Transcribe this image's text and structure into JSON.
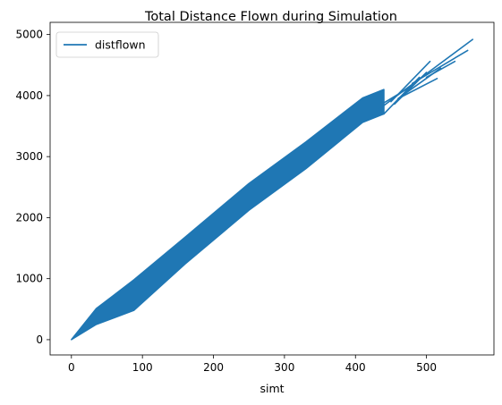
{
  "chart_data": {
    "type": "line",
    "title": "Total Distance Flown during Simulation",
    "xlabel": "simt",
    "ylabel": "",
    "xlim": [
      -30,
      595
    ],
    "ylim": [
      -250,
      5200
    ],
    "xticks": [
      0,
      100,
      200,
      300,
      400,
      500
    ],
    "yticks": [
      0,
      1000,
      2000,
      3000,
      4000,
      5000
    ],
    "grid": false,
    "legend_position": "top-left",
    "series": [
      {
        "name": "distflown",
        "color": "#1f77b4",
        "band": {
          "x": [
            0,
            35,
            88,
            160,
            250,
            330,
            410,
            440
          ],
          "upper": [
            0,
            510,
            980,
            1680,
            2560,
            3240,
            3960,
            4100
          ],
          "lower": [
            0,
            250,
            480,
            1240,
            2120,
            2800,
            3560,
            3700
          ]
        },
        "spikes": [
          {
            "from": [
              430,
              3750
            ],
            "to": [
              470,
              4100
            ]
          },
          {
            "from": [
              440,
              3700
            ],
            "to": [
              490,
              4300
            ]
          },
          {
            "from": [
              450,
              3900
            ],
            "to": [
              505,
              4560
            ]
          },
          {
            "from": [
              455,
              3860
            ],
            "to": [
              500,
              4380
            ]
          },
          {
            "from": [
              460,
              3950
            ],
            "to": [
              520,
              4450
            ]
          },
          {
            "from": [
              470,
              4100
            ],
            "to": [
              565,
              4920
            ]
          },
          {
            "from": [
              480,
              4200
            ],
            "to": [
              558,
              4740
            ]
          },
          {
            "from": [
              500,
              4300
            ],
            "to": [
              540,
              4560
            ]
          },
          {
            "from": [
              465,
              3980
            ],
            "to": [
              515,
              4280
            ]
          },
          {
            "from": [
              440,
              3880
            ],
            "to": [
              480,
              4160
            ]
          }
        ]
      }
    ]
  }
}
